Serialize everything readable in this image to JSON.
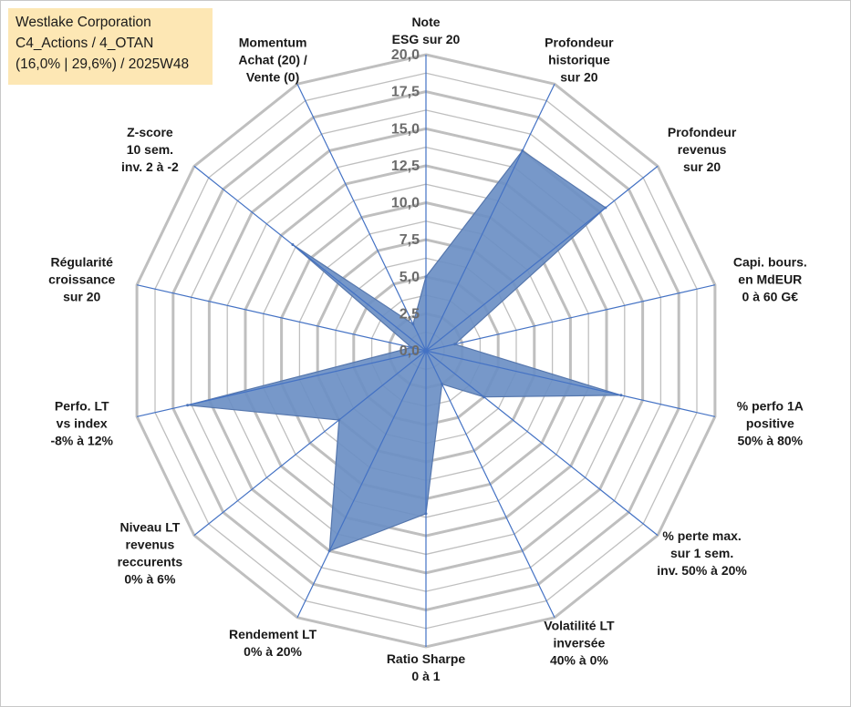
{
  "title_box": {
    "line1": "Westlake Corporation",
    "line2": "C4_Actions / 4_OTAN",
    "line3": "(16,0% | 29,6%) / 2025W48",
    "background": "#fde7b4"
  },
  "chart_data": {
    "type": "radar",
    "rmin": 0,
    "rmax": 20,
    "tick_values": [
      0,
      2.5,
      5,
      7.5,
      10,
      12.5,
      15,
      17.5,
      20
    ],
    "tick_labels": [
      "0,0",
      "2,5",
      "5,0",
      "7,5",
      "10,0",
      "12,5",
      "15,0",
      "17,5",
      "20,0"
    ],
    "grid": true,
    "axes": [
      {
        "lines": [
          "Note",
          "ESG sur 20"
        ],
        "value": 5.0
      },
      {
        "lines": [
          "Profondeur",
          "historique",
          "sur 20"
        ],
        "value": 15.0
      },
      {
        "lines": [
          "Profondeur",
          "revenus",
          "sur 20"
        ],
        "value": 15.5
      },
      {
        "lines": [
          "Capi. bours.",
          "en MdEUR",
          "0 à 60 G€"
        ],
        "value": 2.0
      },
      {
        "lines": [
          "% perfo 1A",
          "positive",
          "50% à 80%"
        ],
        "value": 13.5
      },
      {
        "lines": [
          "% perte max.",
          "sur 1 sem.",
          "inv. 50% à 20%"
        ],
        "value": 5.0
      },
      {
        "lines": [
          "Volatilité LT",
          "inversée",
          "40% à 0%"
        ],
        "value": 2.5
      },
      {
        "lines": [
          "Ratio Sharpe",
          "0 à 1"
        ],
        "value": 11.0
      },
      {
        "lines": [
          "Rendement LT",
          "0% à 20%"
        ],
        "value": 15.0
      },
      {
        "lines": [
          "Niveau LT",
          "revenus",
          "reccurents",
          "0% à 6%"
        ],
        "value": 7.5
      },
      {
        "lines": [
          "Perfo. LT",
          "vs index",
          "-8% à 12%"
        ],
        "value": 16.5
      },
      {
        "lines": [
          "Régularité",
          "croissance",
          "sur 20"
        ],
        "value": 1.0
      },
      {
        "lines": [
          "Z-score",
          "10 sem.",
          "inv. 2 à -2"
        ],
        "value": 11.5
      },
      {
        "lines": [
          "Momentum",
          "Achat (20) /",
          "Vente (0)"
        ],
        "value": 2.0
      }
    ],
    "colors": {
      "fill": "#6b8fc4",
      "stroke": "#5677ad",
      "axis_line": "#4472c4",
      "grid": "#bfbfbf"
    }
  }
}
